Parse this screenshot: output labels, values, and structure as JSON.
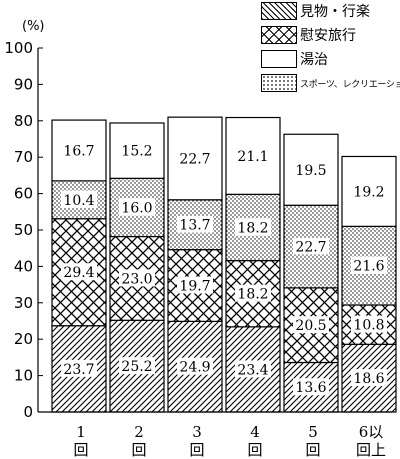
{
  "chart_data": {
    "type": "bar",
    "stacked": true,
    "categories": [
      [
        "1",
        "回"
      ],
      [
        "2",
        "回"
      ],
      [
        "3",
        "回"
      ],
      [
        "4",
        "回"
      ],
      [
        "5",
        "回"
      ],
      [
        "6以",
        "回上"
      ]
    ],
    "series": [
      {
        "name": "見物・行楽",
        "pattern": "diagonal",
        "values": [
          23.7,
          25.2,
          24.9,
          23.4,
          13.6,
          18.6
        ]
      },
      {
        "name": "慰安旅行",
        "pattern": "crosshatch",
        "values": [
          29.4,
          23.0,
          19.7,
          18.2,
          20.5,
          10.8
        ]
      },
      {
        "name": "スポーツ、レクリエーション",
        "pattern": "dots",
        "values": [
          10.4,
          16.0,
          13.7,
          18.2,
          22.7,
          21.6
        ]
      },
      {
        "name": "湯治",
        "pattern": "blank",
        "values": [
          16.7,
          15.2,
          22.7,
          21.1,
          19.5,
          19.2
        ]
      }
    ],
    "data_labels": [
      [
        "23.7",
        "25.2",
        "24.9",
        "23.4",
        "13.6",
        "18.6"
      ],
      [
        "29.4",
        "23.0",
        "19.7",
        "18.2",
        "20.5",
        "10.8"
      ],
      [
        "10.4",
        "16.0",
        "13.7",
        "18.2",
        "22.7",
        "21.6"
      ],
      [
        "16.7",
        "15.2",
        "22.7",
        "21.1",
        "19.5",
        "19.2"
      ]
    ],
    "yunit": "(%)",
    "ylim": [
      0,
      100
    ],
    "yticks": [
      "0",
      "10",
      "20",
      "30",
      "40",
      "50",
      "60",
      "70",
      "80",
      "90",
      "100"
    ],
    "grid": false,
    "legend_position": "top-right"
  }
}
